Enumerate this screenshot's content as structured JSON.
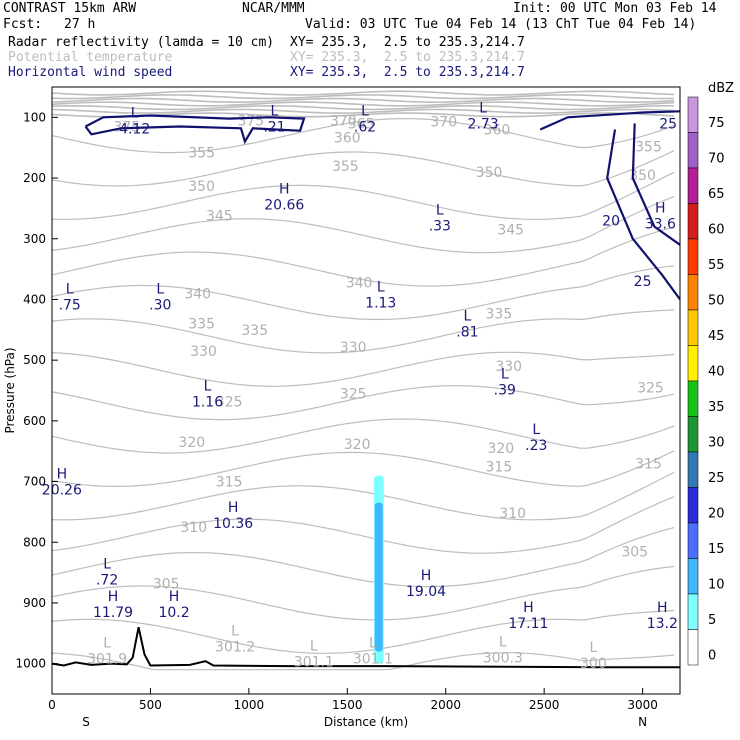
{
  "header": {
    "model": "CONTRAST 15km ARW",
    "org": "NCAR/MMM",
    "init": "Init: 00 UTC Mon 03 Feb 14",
    "fcst_label": "Fcst:",
    "fcst_value": "27 h",
    "valid": "Valid: 03 UTC Tue 04 Feb 14 (13 ChT Tue 04 Feb 14)",
    "fields": [
      {
        "name": "Radar reflectivity (lamda = 10 cm)",
        "xy": "XY= 235.3,  2.5 to 235.3,214.7",
        "color": "#000000"
      },
      {
        "name": "Potential temperature",
        "xy": "XY= 235.3,  2.5 to 235.3,214.7",
        "color": "#bdbdbd"
      },
      {
        "name": "Horizontal wind speed",
        "xy": "XY= 235.3,  2.5 to 235.3,214.7",
        "color": "#1a1a7a"
      }
    ]
  },
  "chart_data": {
    "type": "cross-section",
    "xlabel": "Distance (km)",
    "ylabel": "Pressure (hPa)",
    "xlim": [
      0,
      3190
    ],
    "ylim": [
      1050,
      50
    ],
    "x_ticks": [
      0,
      500,
      1000,
      1500,
      2000,
      2500,
      3000
    ],
    "y_ticks": [
      100,
      200,
      300,
      400,
      500,
      600,
      700,
      800,
      900,
      1000
    ],
    "endpoints": {
      "left": "S",
      "right": "N"
    },
    "theta_labels": [
      {
        "text": "375",
        "x": 380,
        "p": 115
      },
      {
        "text": "375",
        "x": 1010,
        "p": 105
      },
      {
        "text": "370",
        "x": 1480,
        "p": 105
      },
      {
        "text": "365",
        "x": 1570,
        "p": 110
      },
      {
        "text": "370",
        "x": 1990,
        "p": 107
      },
      {
        "text": "360",
        "x": 1500,
        "p": 133
      },
      {
        "text": "360",
        "x": 2260,
        "p": 120
      },
      {
        "text": "355",
        "x": 760,
        "p": 158
      },
      {
        "text": "355",
        "x": 1490,
        "p": 180
      },
      {
        "text": "355",
        "x": 3030,
        "p": 148
      },
      {
        "text": "350",
        "x": 760,
        "p": 213
      },
      {
        "text": "350",
        "x": 2220,
        "p": 190
      },
      {
        "text": "350",
        "x": 3000,
        "p": 195
      },
      {
        "text": "345",
        "x": 850,
        "p": 262
      },
      {
        "text": "345",
        "x": 2330,
        "p": 285
      },
      {
        "text": "340",
        "x": 1560,
        "p": 372
      },
      {
        "text": "340",
        "x": 740,
        "p": 390
      },
      {
        "text": "335",
        "x": 760,
        "p": 440
      },
      {
        "text": "335",
        "x": 1030,
        "p": 450
      },
      {
        "text": "335",
        "x": 2270,
        "p": 423
      },
      {
        "text": "330",
        "x": 770,
        "p": 485
      },
      {
        "text": "330",
        "x": 1530,
        "p": 478
      },
      {
        "text": "330",
        "x": 2320,
        "p": 510
      },
      {
        "text": "325",
        "x": 900,
        "p": 568
      },
      {
        "text": "325",
        "x": 1530,
        "p": 555
      },
      {
        "text": "325",
        "x": 3040,
        "p": 545
      },
      {
        "text": "320",
        "x": 710,
        "p": 635
      },
      {
        "text": "320",
        "x": 1550,
        "p": 638
      },
      {
        "text": "320",
        "x": 2280,
        "p": 645
      },
      {
        "text": "315",
        "x": 900,
        "p": 700
      },
      {
        "text": "315",
        "x": 2270,
        "p": 675
      },
      {
        "text": "315",
        "x": 3030,
        "p": 670
      },
      {
        "text": "310",
        "x": 720,
        "p": 775
      },
      {
        "text": "310",
        "x": 2340,
        "p": 752
      },
      {
        "text": "305",
        "x": 580,
        "p": 868
      },
      {
        "text": "305",
        "x": 2960,
        "p": 815
      }
    ],
    "wind_extrema": [
      {
        "type": "L",
        "value": "4.12",
        "x": 420,
        "p": 105
      },
      {
        "type": "L",
        "value": ".21",
        "x": 1130,
        "p": 102
      },
      {
        "type": "L",
        "value": ".62",
        "x": 1590,
        "p": 102
      },
      {
        "type": "L",
        "value": "2.73",
        "x": 2190,
        "p": 97
      },
      {
        "type": "H",
        "value": "20.66",
        "x": 1180,
        "p": 230
      },
      {
        "type": "L",
        "value": ".33",
        "x": 1970,
        "p": 265
      },
      {
        "type": "H",
        "value": "33.6",
        "x": 3090,
        "p": 262
      },
      {
        "type": "L",
        "value": ".75",
        "x": 90,
        "p": 395
      },
      {
        "type": "L",
        "value": ".30",
        "x": 550,
        "p": 395
      },
      {
        "type": "L",
        "value": "1.13",
        "x": 1670,
        "p": 392
      },
      {
        "type": "L",
        "value": ".81",
        "x": 2110,
        "p": 440
      },
      {
        "type": "L",
        "value": ".39",
        "x": 2300,
        "p": 535
      },
      {
        "type": "L",
        "value": "1.16",
        "x": 790,
        "p": 555
      },
      {
        "type": "L",
        "value": ".23",
        "x": 2460,
        "p": 627
      },
      {
        "type": "H",
        "value": "20.26",
        "x": 50,
        "p": 700
      },
      {
        "type": "H",
        "value": "10.36",
        "x": 920,
        "p": 755
      },
      {
        "type": "L",
        "value": ".72",
        "x": 280,
        "p": 848
      },
      {
        "type": "H",
        "value": "19.04",
        "x": 1900,
        "p": 867
      },
      {
        "type": "H",
        "value": "10.2",
        "x": 620,
        "p": 902
      },
      {
        "type": "H",
        "value": "11.79",
        "x": 310,
        "p": 902
      },
      {
        "type": "H",
        "value": "17.11",
        "x": 2420,
        "p": 920
      },
      {
        "type": "H",
        "value": "13.2",
        "x": 3100,
        "p": 920
      }
    ],
    "wind_contour_labels": [
      {
        "text": "25",
        "x": 3130,
        "p": 110
      },
      {
        "text": "20",
        "x": 2840,
        "p": 270
      },
      {
        "text": "25",
        "x": 3000,
        "p": 370
      }
    ],
    "surface_labels": [
      {
        "type": "L",
        "value": "301.9",
        "x": 280,
        "p": 1000
      },
      {
        "type": "L",
        "value": "301.2",
        "x": 930,
        "p": 980
      },
      {
        "type": "L",
        "value": "301.1",
        "x": 1330,
        "p": 1005
      },
      {
        "type": "L",
        "value": "301.1",
        "x": 1630,
        "p": 1000
      },
      {
        "type": "L",
        "value": "300.3",
        "x": 2290,
        "p": 998
      },
      {
        "type": "L",
        "value": "300",
        "x": 2750,
        "p": 1007
      }
    ],
    "reflectivity_colorbar": {
      "unit": "dBZ",
      "levels": [
        0,
        5,
        10,
        15,
        20,
        25,
        30,
        35,
        40,
        45,
        50,
        55,
        60,
        65,
        70,
        75
      ],
      "colors": [
        "#ffffff",
        "#7fffff",
        "#41b6ff",
        "#4b6fff",
        "#2b2bd9",
        "#3278b4",
        "#1e9632",
        "#17c317",
        "#fff000",
        "#ffc800",
        "#ff8200",
        "#ff3c00",
        "#d21e1e",
        "#b41e96",
        "#a060c8",
        "#c896dc"
      ]
    },
    "reflectivity_column": {
      "x": 1660,
      "p_top": 690,
      "p_bottom": 1000
    }
  }
}
